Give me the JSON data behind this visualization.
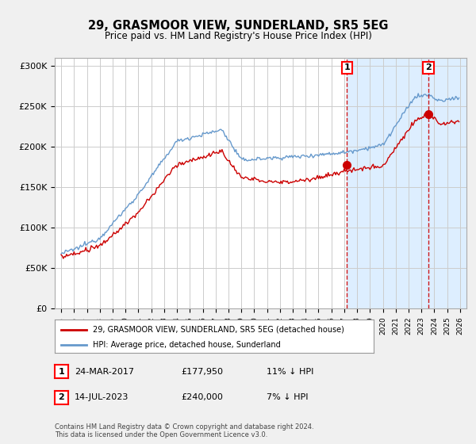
{
  "title": "29, GRASMOOR VIEW, SUNDERLAND, SR5 5EG",
  "subtitle": "Price paid vs. HM Land Registry's House Price Index (HPI)",
  "ylim": [
    0,
    310000
  ],
  "yticks": [
    0,
    50000,
    100000,
    150000,
    200000,
    250000,
    300000
  ],
  "ytick_labels": [
    "£0",
    "£50K",
    "£100K",
    "£150K",
    "£200K",
    "£250K",
    "£300K"
  ],
  "hpi_color": "#6699cc",
  "price_color": "#cc0000",
  "dashed_line_color": "#cc0000",
  "background_color": "#f0f0f0",
  "plot_bg_color": "#ffffff",
  "shade_color": "#ddeeff",
  "legend_label_red": "29, GRASMOOR VIEW, SUNDERLAND, SR5 5EG (detached house)",
  "legend_label_blue": "HPI: Average price, detached house, Sunderland",
  "marker1_date": "24-MAR-2017",
  "marker1_price": "£177,950",
  "marker1_pct": "11% ↓ HPI",
  "marker1_year": 2017.22,
  "marker1_value": 177950,
  "marker2_date": "14-JUL-2023",
  "marker2_price": "£240,000",
  "marker2_pct": "7% ↓ HPI",
  "marker2_year": 2023.54,
  "marker2_value": 240000,
  "footer": "Contains HM Land Registry data © Crown copyright and database right 2024.\nThis data is licensed under the Open Government Licence v3.0.",
  "grid_color": "#cccccc",
  "xmin": 1995,
  "xmax": 2026
}
